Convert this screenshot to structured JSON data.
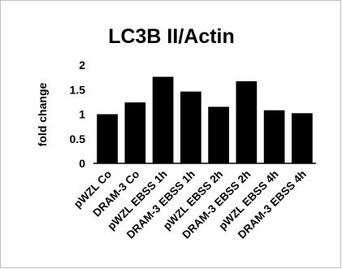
{
  "chart_data": {
    "type": "bar",
    "title": "LC3B II/Actin",
    "xlabel": "",
    "ylabel": "fold change",
    "ylim": [
      0,
      2
    ],
    "yticks": [
      0,
      0.5,
      1,
      1.5,
      2
    ],
    "ytick_labels": [
      "0",
      "0.5",
      "1",
      "1.5",
      "2"
    ],
    "grid": false,
    "legend": "none",
    "bar_color": "#000000",
    "categories": [
      "pWZL Co",
      "DRAM-3 Co",
      "pWZL EBSS 1h",
      "DRAM-3 EBSS 1h",
      "pWZL EBSS 2h",
      "DRAM-3 EBSS 2h",
      "pWZL EBSS 4h",
      "DRAM-3 EBSS 4h"
    ],
    "values": [
      1.0,
      1.24,
      1.76,
      1.46,
      1.15,
      1.67,
      1.08,
      1.02
    ]
  }
}
